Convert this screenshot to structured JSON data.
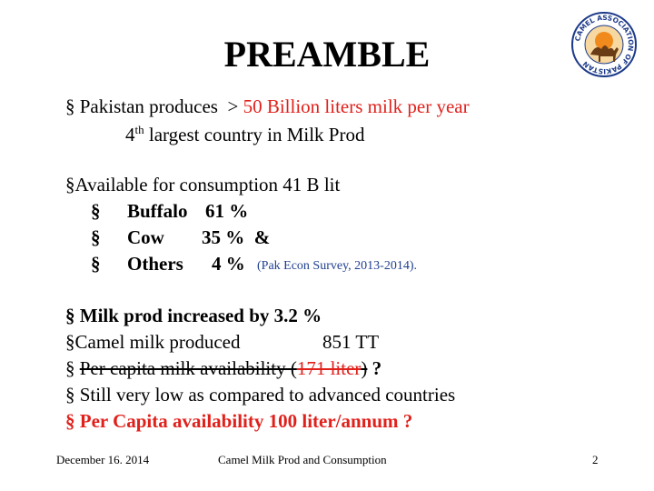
{
  "title": "PREAMBLE",
  "logo_text": "CAMEL ASSOCIATION OF PAKISTAN",
  "bullet": "§",
  "body": [
    [
      "Pakistan produces  > ",
      "50 Billion liters milk per year"
    ],
    [
      "4",
      "th",
      " largest country in Milk Prod"
    ],
    [
      "Available for consumption 41 B lit"
    ],
    [
      "Buffalo",
      "61 %"
    ],
    [
      "Cow",
      "35 %  &"
    ],
    [
      "Others",
      "4 %",
      "(Pak Econ Survey, 2013-2014)."
    ],
    [
      "Milk prod increased by 3.2 %"
    ],
    [
      "Camel milk produced",
      "851 TT"
    ],
    [
      "Per capita milk availability (",
      "171 liter",
      ")",
      " ?"
    ],
    [
      "Still very low as compared to advanced countries"
    ],
    [
      "Per Capita availability 100 liter/annum ?"
    ]
  ],
  "footer": {
    "date": "December 16. 2014",
    "topic": "Camel Milk Prod and Consumption",
    "page": "2"
  }
}
